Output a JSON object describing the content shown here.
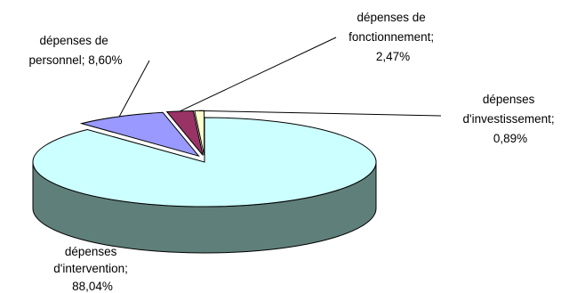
{
  "chart_data": {
    "type": "pie",
    "title": "",
    "style": "3d-exploded",
    "slices": [
      {
        "name": "dépenses d'intervention",
        "value": 88.04,
        "value_label": "88,04%",
        "color": "#ccffff",
        "side_color": "#5f7f7a",
        "label_lines": [
          "dépenses",
          "d'intervention;",
          "88,04%"
        ]
      },
      {
        "name": "dépenses de personnel",
        "value": 8.6,
        "value_label": "8,60%",
        "color": "#9999ff",
        "side_color": "#3a3a8c",
        "label_lines": [
          "dépenses de",
          "personnel; 8,60%"
        ]
      },
      {
        "name": "dépenses de fonctionnement",
        "value": 2.47,
        "value_label": "2,47%",
        "color": "#993366",
        "side_color": "#4a1030",
        "label_lines": [
          "dépenses de",
          "fonctionnement;",
          "2,47%"
        ]
      },
      {
        "name": "dépenses d'investissement",
        "value": 0.89,
        "value_label": "0,89%",
        "color": "#ffffcc",
        "side_color": "#8a7a5a",
        "label_lines": [
          "dépenses",
          "d'investissement;",
          "0,89%"
        ]
      }
    ]
  }
}
